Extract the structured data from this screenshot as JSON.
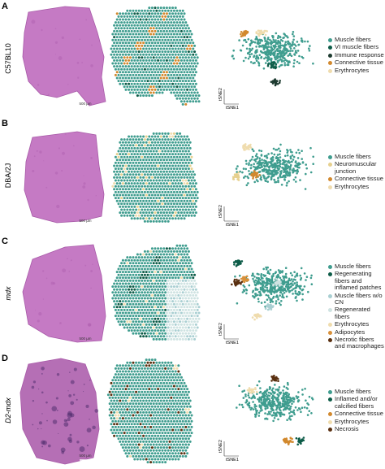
{
  "panels": [
    {
      "letter": "A",
      "strain": "C57BL10",
      "scale_bar": "500 µm",
      "tsne_x": "tSNE1",
      "tsne_y": "tSNE2",
      "legend": [
        {
          "label": "Muscle fibers",
          "color": "#3f9d8f"
        },
        {
          "label": "VI muscle fibers",
          "color": "#0d5c48"
        },
        {
          "label": "Immune response",
          "color": "#1d3b30"
        },
        {
          "label": "Connective tissue",
          "color": "#d2892e"
        },
        {
          "label": "Erythrocytes",
          "color": "#efdcae"
        }
      ]
    },
    {
      "letter": "B",
      "strain": "DBA/2J",
      "scale_bar": "500 µm",
      "tsne_x": "tSNE1",
      "tsne_y": "tSNE2",
      "legend": [
        {
          "label": "Muscle fibers",
          "color": "#3f9d8f"
        },
        {
          "label": "Neuromuscular junction",
          "color": "#e6d08e"
        },
        {
          "label": "Connective tissue",
          "color": "#d2892e"
        },
        {
          "label": "Erythrocytes",
          "color": "#efdcae"
        }
      ]
    },
    {
      "letter": "C",
      "strain": "mdx",
      "scale_bar": "500 µm",
      "tsne_x": "tSNE1",
      "tsne_y": "tSNE2",
      "legend": [
        {
          "label": "Muscle fibers",
          "color": "#3f9d8f"
        },
        {
          "label": "Regenerating fibers and inflamed patches",
          "color": "#0d5c48"
        },
        {
          "label": "Muscle fibers w/o CN",
          "color": "#a9cfd2"
        },
        {
          "label": "Regenerated fibers",
          "color": "#cfe3e2"
        },
        {
          "label": "Erythrocytes",
          "color": "#efdcae"
        },
        {
          "label": "Adipocytes",
          "color": "#d8903a"
        },
        {
          "label": "Necrotic fibers and macrophages",
          "color": "#5a3010"
        }
      ]
    },
    {
      "letter": "D",
      "strain": "D2-mdx",
      "scale_bar": "500 µm",
      "tsne_x": "tSNE1",
      "tsne_y": "tSNE2",
      "legend": [
        {
          "label": "Muscle fibers",
          "color": "#3f9d8f"
        },
        {
          "label": "Inflamed and/or calcified fibers",
          "color": "#0d5c48"
        },
        {
          "label": "Connective tissue",
          "color": "#d2892e"
        },
        {
          "label": "Erythrocytes",
          "color": "#efdcae"
        },
        {
          "label": "Necrosis",
          "color": "#5a3010"
        }
      ]
    }
  ]
}
